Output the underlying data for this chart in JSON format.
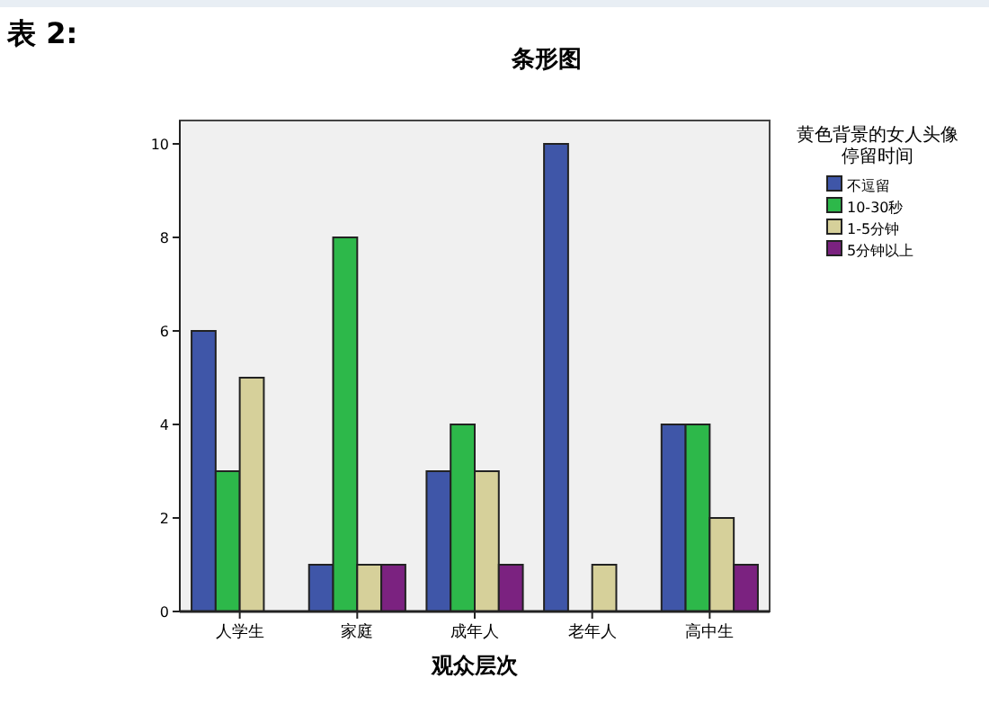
{
  "chart_data": {
    "type": "bar",
    "title": "条形图",
    "xlabel": "观众层次",
    "legend_title": "黄色背景的女人头像停留时间",
    "annotations": [
      "表 2:"
    ],
    "categories": [
      "人学生",
      "家庭",
      "成年人",
      "老年人",
      "高中生"
    ],
    "series": [
      {
        "name": "不逗留",
        "color": "#3f56a8",
        "values": [
          6,
          1,
          3,
          10,
          4
        ]
      },
      {
        "name": "10-30秒",
        "color": "#2db84a",
        "values": [
          3,
          8,
          4,
          null,
          4
        ]
      },
      {
        "name": "1-5分钟",
        "color": "#d6d09a",
        "values": [
          5,
          1,
          3,
          1,
          2
        ]
      },
      {
        "name": "5分钟以上",
        "color": "#7b2280",
        "values": [
          null,
          1,
          1,
          null,
          1
        ]
      }
    ],
    "ylim": [
      0,
      10.5
    ],
    "yticks": [
      0,
      2,
      4,
      6,
      8,
      10
    ],
    "grid": false,
    "legend": "right"
  }
}
